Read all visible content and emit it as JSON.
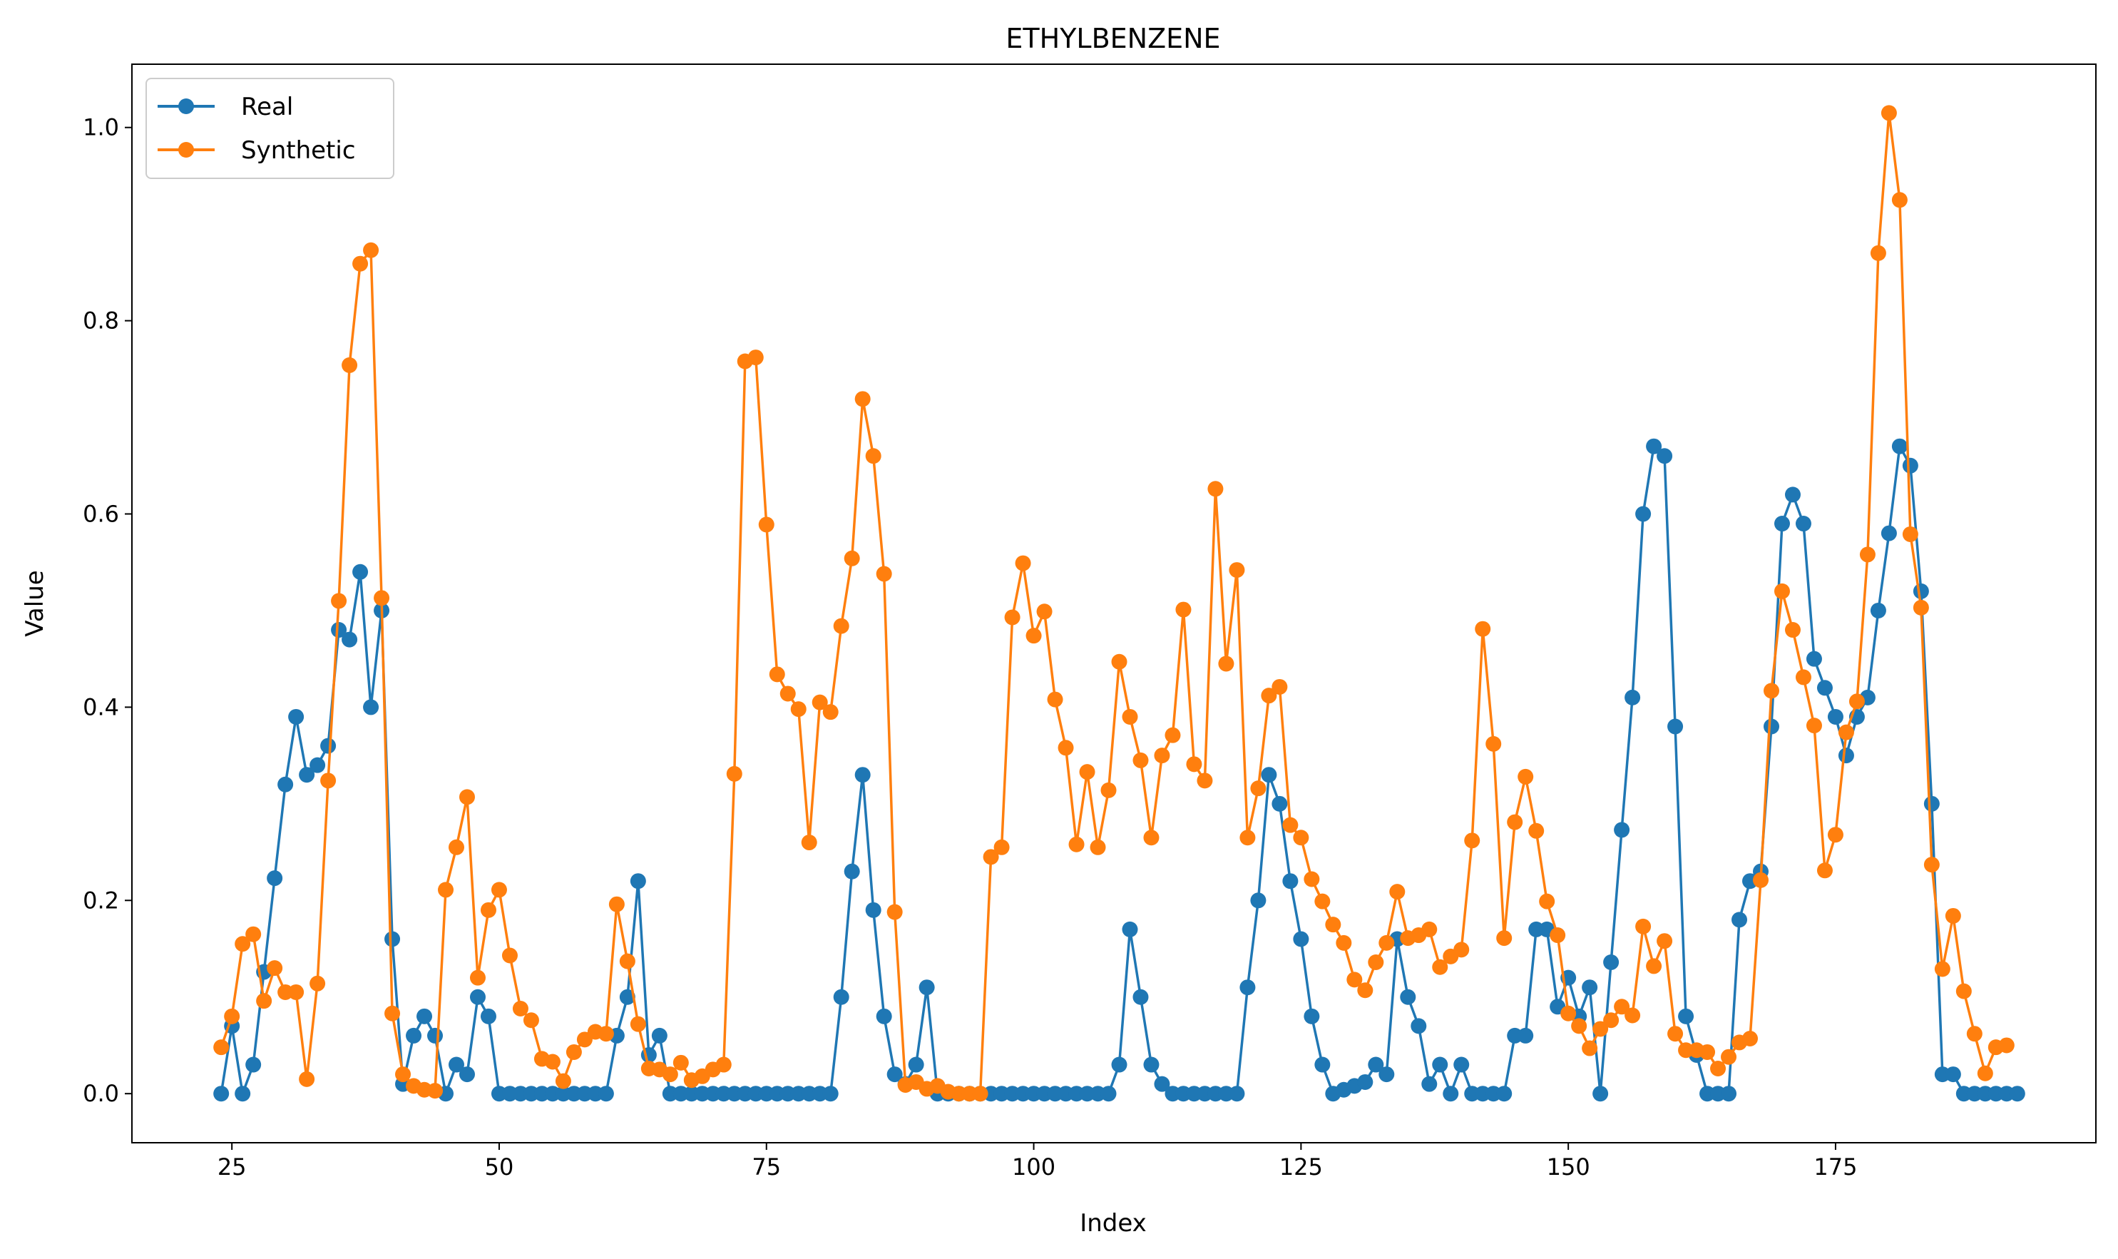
{
  "chart_data": {
    "type": "line",
    "title": "ETHYLBENZENE",
    "xlabel": "Index",
    "ylabel": "Value",
    "xlim": [
      15.65,
      199.35
    ],
    "ylim": [
      -0.0508,
      1.0655
    ],
    "x_ticks": [
      25,
      50,
      75,
      100,
      125,
      150,
      175
    ],
    "y_ticks": [
      0.0,
      0.2,
      0.4,
      0.6,
      0.8,
      1.0
    ],
    "x_tick_labels": [
      "25",
      "50",
      "75",
      "100",
      "125",
      "150",
      "175"
    ],
    "y_tick_labels": [
      "0.0",
      "0.2",
      "0.4",
      "0.6",
      "0.8",
      "1.0"
    ],
    "grid": false,
    "legend_position": "top-left",
    "x_start": 24,
    "series": [
      {
        "name": "Real",
        "color": "#1f77b4",
        "values": [
          0.0,
          0.07,
          0.0,
          0.03,
          0.126,
          0.223,
          0.32,
          0.39,
          0.33,
          0.34,
          0.36,
          0.48,
          0.47,
          0.54,
          0.4,
          0.5,
          0.16,
          0.01,
          0.06,
          0.08,
          0.06,
          0.0,
          0.03,
          0.02,
          0.1,
          0.08,
          0.0,
          0.0,
          0.0,
          0.0,
          0.0,
          0.0,
          0.0,
          0.0,
          0.0,
          0.0,
          0.0,
          0.06,
          0.1,
          0.22,
          0.04,
          0.06,
          0.0,
          0.0,
          0.0,
          0.0,
          0.0,
          0.0,
          0.0,
          0.0,
          0.0,
          0.0,
          0.0,
          0.0,
          0.0,
          0.0,
          0.0,
          0.0,
          0.1,
          0.23,
          0.33,
          0.19,
          0.08,
          0.02,
          0.01,
          0.03,
          0.11,
          0.0,
          0.0,
          0.0,
          0.0,
          0.0,
          0.0,
          0.0,
          0.0,
          0.0,
          0.0,
          0.0,
          0.0,
          0.0,
          0.0,
          0.0,
          0.0,
          0.0,
          0.03,
          0.17,
          0.1,
          0.03,
          0.01,
          0.0,
          0.0,
          0.0,
          0.0,
          0.0,
          0.0,
          0.0,
          0.11,
          0.2,
          0.33,
          0.3,
          0.22,
          0.16,
          0.08,
          0.03,
          0.0,
          0.004,
          0.008,
          0.012,
          0.03,
          0.02,
          0.16,
          0.1,
          0.07,
          0.01,
          0.03,
          0.0,
          0.03,
          0.0,
          0.0,
          0.0,
          0.0,
          0.06,
          0.06,
          0.17,
          0.17,
          0.09,
          0.12,
          0.08,
          0.11,
          0.0,
          0.136,
          0.273,
          0.41,
          0.6,
          0.67,
          0.66,
          0.38,
          0.08,
          0.04,
          0.0,
          0.0,
          0.0,
          0.18,
          0.22,
          0.23,
          0.38,
          0.59,
          0.62,
          0.59,
          0.45,
          0.42,
          0.39,
          0.35,
          0.39,
          0.41,
          0.5,
          0.58,
          0.67,
          0.65,
          0.52,
          0.3,
          0.02,
          0.02,
          0.0,
          0.0,
          0.0,
          0.0,
          0.0,
          0.0
        ]
      },
      {
        "name": "Synthetic",
        "color": "#ff7f0e",
        "values": [
          0.048,
          0.08,
          0.155,
          0.165,
          0.096,
          0.13,
          0.105,
          0.105,
          0.015,
          0.114,
          0.324,
          0.51,
          0.754,
          0.859,
          0.873,
          0.513,
          0.083,
          0.02,
          0.008,
          0.004,
          0.003,
          0.211,
          0.255,
          0.307,
          0.12,
          0.19,
          0.211,
          0.143,
          0.088,
          0.076,
          0.036,
          0.033,
          0.013,
          0.043,
          0.056,
          0.064,
          0.062,
          0.196,
          0.137,
          0.072,
          0.026,
          0.025,
          0.02,
          0.032,
          0.014,
          0.018,
          0.025,
          0.03,
          0.331,
          0.758,
          0.762,
          0.589,
          0.434,
          0.414,
          0.398,
          0.26,
          0.405,
          0.395,
          0.484,
          0.554,
          0.719,
          0.66,
          0.538,
          0.188,
          0.009,
          0.012,
          0.005,
          0.008,
          0.002,
          0.0,
          0.0,
          0.0,
          0.245,
          0.255,
          0.493,
          0.549,
          0.474,
          0.499,
          0.408,
          0.358,
          0.258,
          0.333,
          0.255,
          0.314,
          0.447,
          0.39,
          0.345,
          0.265,
          0.35,
          0.371,
          0.501,
          0.341,
          0.324,
          0.626,
          0.445,
          0.542,
          0.265,
          0.316,
          0.412,
          0.421,
          0.278,
          0.265,
          0.222,
          0.199,
          0.175,
          0.156,
          0.118,
          0.107,
          0.136,
          0.156,
          0.209,
          0.161,
          0.164,
          0.17,
          0.131,
          0.142,
          0.149,
          0.262,
          0.481,
          0.362,
          0.161,
          0.281,
          0.328,
          0.272,
          0.199,
          0.164,
          0.083,
          0.07,
          0.047,
          0.067,
          0.076,
          0.09,
          0.081,
          0.173,
          0.132,
          0.158,
          0.062,
          0.045,
          0.045,
          0.043,
          0.026,
          0.038,
          0.053,
          0.057,
          0.221,
          0.417,
          0.52,
          0.48,
          0.431,
          0.381,
          0.231,
          0.268,
          0.374,
          0.406,
          0.558,
          0.87,
          1.015,
          0.925,
          0.579,
          0.503,
          0.237,
          0.129,
          0.184,
          0.106,
          0.062,
          0.021,
          0.048,
          0.05
        ]
      }
    ]
  }
}
